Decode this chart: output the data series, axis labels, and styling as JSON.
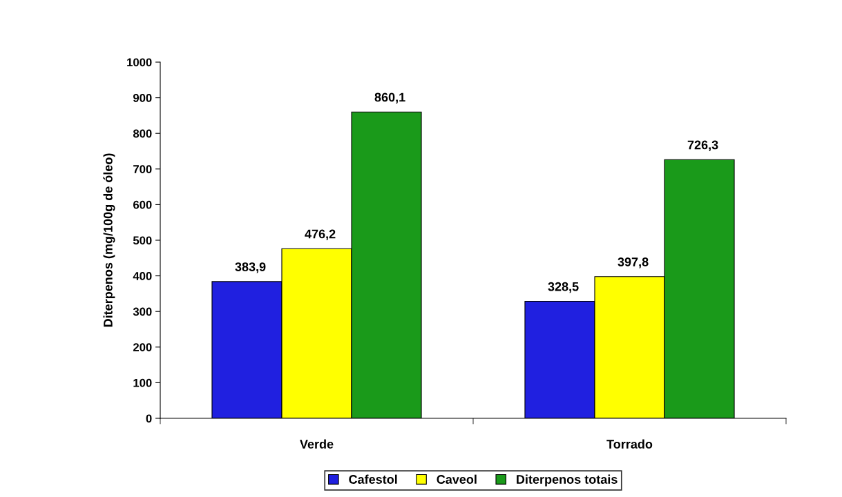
{
  "chart_data": {
    "type": "bar",
    "ylabel": "Diterpenos (mg/100g de óleo)",
    "categories": [
      "Verde",
      "Torrado"
    ],
    "series": [
      {
        "name": "Cafestol",
        "color": "#2020e0",
        "values": [
          383.9,
          328.5
        ],
        "value_labels": [
          "383,9",
          "328,5"
        ]
      },
      {
        "name": "Caveol",
        "color": "#ffff00",
        "values": [
          476.2,
          397.8
        ],
        "value_labels": [
          "476,2",
          "397,8"
        ]
      },
      {
        "name": "Diterpenos totais",
        "color": "#1a9a1a",
        "values": [
          860.1,
          726.3
        ],
        "value_labels": [
          "860,1",
          "726,3"
        ]
      }
    ],
    "ylim": [
      0,
      1000
    ],
    "yticks": [
      0,
      100,
      200,
      300,
      400,
      500,
      600,
      700,
      800,
      900,
      1000
    ],
    "grid": false,
    "legend": "bottom"
  }
}
